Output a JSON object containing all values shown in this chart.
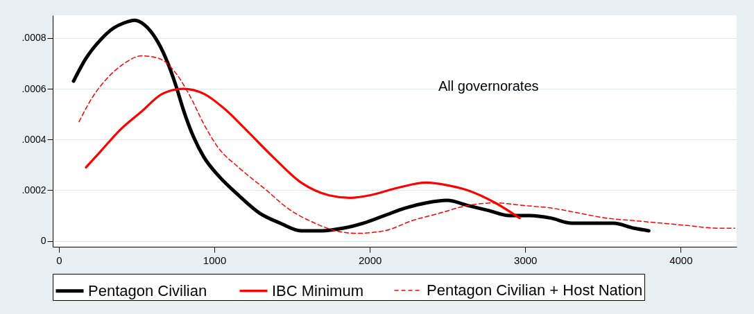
{
  "chart_data": {
    "type": "line",
    "annotations": [
      "All governorates"
    ],
    "xlim": [
      -40,
      4360
    ],
    "xticks": [
      0,
      1000,
      2000,
      3000,
      4000
    ],
    "ylim": [
      -2.3e-05,
      0.00089
    ],
    "yticks": [
      {
        "value": 0,
        "label": "0"
      },
      {
        "value": 0.0002,
        "label": ".0002"
      },
      {
        "value": 0.0004,
        "label": ".0004"
      },
      {
        "value": 0.0006,
        "label": ".0006"
      },
      {
        "value": 0.0008,
        "label": ".0008"
      }
    ],
    "grid": "y",
    "legend": "bottom",
    "series": [
      {
        "name": "Pentagon Civilian",
        "color": "#000000",
        "line_style": "solid",
        "x": [
          94,
          174,
          263,
          353,
          420,
          487,
          554,
          621,
          688,
          754,
          799,
          866,
          933,
          1022,
          1156,
          1290,
          1424,
          1558,
          1692,
          1826,
          1960,
          2094,
          2228,
          2362,
          2496,
          2629,
          2763,
          2897,
          3031,
          3165,
          3299,
          3433,
          3567,
          3701,
          3795
        ],
        "values": [
          0.00063,
          0.00072,
          0.00079,
          0.00084,
          0.00086,
          0.00087,
          0.00085,
          0.0008,
          0.00072,
          0.00061,
          0.00052,
          0.00041,
          0.00033,
          0.00026,
          0.00018,
          0.00011,
          7e-05,
          4e-05,
          4e-05,
          5e-05,
          7e-05,
          0.0001,
          0.00013,
          0.00015,
          0.00016,
          0.00014,
          0.00012,
          0.0001,
          0.0001,
          9e-05,
          7e-05,
          7e-05,
          7e-05,
          5e-05,
          4e-05
        ]
      },
      {
        "name": "IBC Minimum",
        "color": "#ff0000",
        "line_style": "solid",
        "x": [
          174,
          263,
          397,
          531,
          665,
          799,
          933,
          1067,
          1201,
          1379,
          1558,
          1737,
          1871,
          2000,
          2183,
          2362,
          2496,
          2629,
          2808,
          2964
        ],
        "values": [
          0.00029,
          0.00035,
          0.00044,
          0.00051,
          0.00058,
          0.0006,
          0.00058,
          0.00052,
          0.00044,
          0.00033,
          0.00023,
          0.00018,
          0.00017,
          0.00018,
          0.00021,
          0.00023,
          0.00022,
          0.0002,
          0.00015,
          9e-05
        ]
      },
      {
        "name": "Pentagon Civilian + Host Nation",
        "color": "#ff0000",
        "line_style": "dashed",
        "x": [
          129,
          219,
          308,
          420,
          531,
          643,
          754,
          844,
          933,
          1022,
          1156,
          1335,
          1469,
          1647,
          1781,
          1915,
          2094,
          2272,
          2451,
          2629,
          2808,
          2987,
          3165,
          3344,
          3522,
          3701,
          3879,
          4058,
          4237,
          4348
        ],
        "values": [
          0.00047,
          0.00057,
          0.00064,
          0.0007,
          0.00073,
          0.00072,
          0.00066,
          0.00057,
          0.00046,
          0.00037,
          0.00029,
          0.0002,
          0.00013,
          7e-05,
          4e-05,
          3e-05,
          4e-05,
          8e-05,
          0.00011,
          0.00014,
          0.00015,
          0.00014,
          0.00013,
          0.00011,
          9e-05,
          8e-05,
          7e-05,
          6e-05,
          5e-05,
          5e-05
        ]
      }
    ]
  }
}
